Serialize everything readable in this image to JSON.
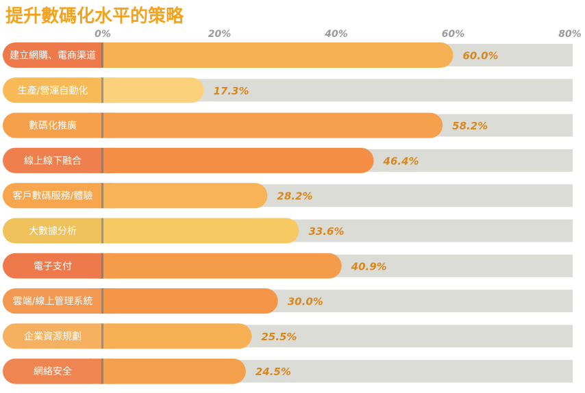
{
  "chart_data": {
    "type": "bar",
    "orientation": "horizontal",
    "title": "提升數碼化水平的策略",
    "xlabel": "",
    "ylabel": "",
    "xlim": [
      0,
      80
    ],
    "ticks": [
      "0%",
      "20%",
      "40%",
      "60%",
      "80%"
    ],
    "tick_values": [
      0,
      20,
      40,
      60,
      80
    ],
    "grid": false,
    "legend": "none",
    "categories": [
      "建立網購、電商渠道",
      "生產/營運自動化",
      "數碼化推廣",
      "線上線下融合",
      "客戶數碼服務/體驗",
      "大數據分析",
      "電子支付",
      "雲端/線上管理系統",
      "企業資源規劃",
      "網絡安全"
    ],
    "values": [
      60.0,
      17.3,
      58.2,
      46.4,
      28.2,
      33.6,
      40.9,
      30.0,
      25.5,
      24.5
    ],
    "value_labels": [
      "60.0%",
      "17.3%",
      "58.2%",
      "46.4%",
      "28.2%",
      "33.6%",
      "40.9%",
      "30.0%",
      "25.5%",
      "24.5%"
    ],
    "colors": {
      "title": "#f2a31b",
      "track": "#dcdcd6",
      "label_text": "#d8871c",
      "tick_text": "#9a9a9a",
      "bars": [
        "#f6b154",
        "#fbd17c",
        "#f5a04c",
        "#f48e47",
        "#f8b257",
        "#f7c962",
        "#f59c4b",
        "#f49648",
        "#f8b054",
        "#f5a04d"
      ],
      "pills": [
        "#ee7a4c",
        "#f7ba57",
        "#f6a04c",
        "#ef7f4d",
        "#f7a64e",
        "#efc15b",
        "#ee7a4c",
        "#f29852",
        "#f5b060",
        "#ef8550"
      ]
    }
  }
}
